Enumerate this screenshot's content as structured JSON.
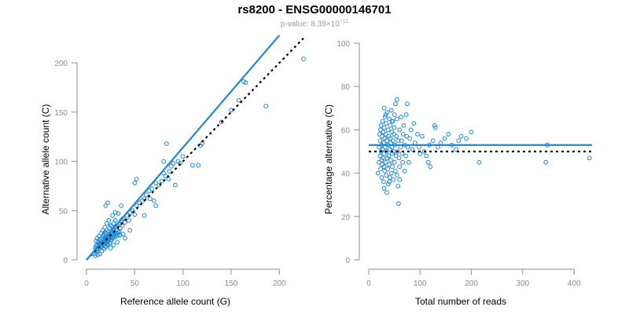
{
  "page": {
    "title": "rs8200 - ENSG00000146701",
    "pvalue_prefix": "p-value: 8.39×10",
    "pvalue_exponent": "−11"
  },
  "colors": {
    "points": "#1f87d6",
    "fit_line": "#1f87d6",
    "reference_line": "#000000",
    "axis": "#8c8c8c"
  },
  "chart_data": [
    {
      "type": "scatter",
      "xlabel": "Reference allele count (G)",
      "ylabel": "Alternative allele count (C)",
      "xlim": [
        0,
        225
      ],
      "ylim": [
        0,
        220
      ],
      "xticks": [
        0,
        50,
        100,
        150,
        200
      ],
      "yticks": [
        0,
        50,
        100,
        150,
        200
      ],
      "fit_line": {
        "x": [
          0,
          200
        ],
        "y": [
          0,
          228
        ]
      },
      "reference_line": {
        "x": [
          0,
          225
        ],
        "y": [
          0,
          225
        ]
      },
      "points": [
        [
          8,
          6
        ],
        [
          9,
          8
        ],
        [
          10,
          10
        ],
        [
          11,
          9
        ],
        [
          12,
          11
        ],
        [
          9,
          12
        ],
        [
          10,
          14
        ],
        [
          11,
          15
        ],
        [
          12,
          13
        ],
        [
          13,
          15
        ],
        [
          14,
          17
        ],
        [
          13,
          12
        ],
        [
          12,
          18
        ],
        [
          15,
          16
        ],
        [
          16,
          14
        ],
        [
          15,
          19
        ],
        [
          14,
          21
        ],
        [
          17,
          18
        ],
        [
          18,
          16
        ],
        [
          16,
          22
        ],
        [
          17,
          24
        ],
        [
          18,
          21
        ],
        [
          19,
          19
        ],
        [
          20,
          23
        ],
        [
          18,
          26
        ],
        [
          19,
          28
        ],
        [
          21,
          20
        ],
        [
          22,
          24
        ],
        [
          20,
          27
        ],
        [
          21,
          30
        ],
        [
          23,
          22
        ],
        [
          22,
          18
        ],
        [
          24,
          26
        ],
        [
          23,
          29
        ],
        [
          25,
          24
        ],
        [
          26,
          28
        ],
        [
          24,
          32
        ],
        [
          25,
          35
        ],
        [
          27,
          26
        ],
        [
          28,
          31
        ],
        [
          26,
          34
        ],
        [
          29,
          28
        ],
        [
          30,
          33
        ],
        [
          28,
          37
        ],
        [
          31,
          30
        ],
        [
          32,
          35
        ],
        [
          30,
          40
        ],
        [
          33,
          28
        ],
        [
          34,
          36
        ],
        [
          35,
          32
        ],
        [
          36,
          40
        ],
        [
          37,
          35
        ],
        [
          38,
          42
        ],
        [
          35,
          25
        ],
        [
          40,
          38
        ],
        [
          42,
          45
        ],
        [
          44,
          40
        ],
        [
          45,
          48
        ],
        [
          48,
          50
        ],
        [
          50,
          46
        ],
        [
          52,
          55
        ],
        [
          55,
          58
        ],
        [
          58,
          60
        ],
        [
          60,
          62
        ],
        [
          62,
          66
        ],
        [
          65,
          70
        ],
        [
          68,
          72
        ],
        [
          70,
          60
        ],
        [
          72,
          78
        ],
        [
          75,
          76
        ],
        [
          78,
          80
        ],
        [
          80,
          88
        ],
        [
          82,
          85
        ],
        [
          85,
          82
        ],
        [
          88,
          95
        ],
        [
          90,
          98
        ],
        [
          95,
          100
        ],
        [
          100,
          105
        ],
        [
          110,
          96
        ],
        [
          116,
          96
        ],
        [
          118,
          116
        ],
        [
          120,
          118
        ],
        [
          140,
          140
        ],
        [
          150,
          152
        ],
        [
          158,
          162
        ],
        [
          163,
          181
        ],
        [
          165,
          180
        ],
        [
          186,
          156
        ],
        [
          225,
          204
        ],
        [
          20,
          55
        ],
        [
          22,
          58
        ],
        [
          30,
          48
        ],
        [
          38,
          26
        ],
        [
          25,
          12
        ],
        [
          28,
          15
        ],
        [
          32,
          18
        ],
        [
          40,
          22
        ],
        [
          45,
          30
        ],
        [
          50,
          78
        ],
        [
          52,
          82
        ],
        [
          60,
          45
        ],
        [
          66,
          62
        ],
        [
          72,
          55
        ],
        [
          80,
          100
        ],
        [
          83,
          118
        ],
        [
          86,
          90
        ],
        [
          92,
          76
        ],
        [
          97,
          98
        ],
        [
          10,
          19
        ],
        [
          11,
          22
        ],
        [
          13,
          24
        ],
        [
          15,
          27
        ],
        [
          17,
          30
        ],
        [
          19,
          33
        ],
        [
          21,
          37
        ],
        [
          23,
          40
        ],
        [
          16,
          9
        ],
        [
          18,
          11
        ],
        [
          20,
          13
        ],
        [
          22,
          15
        ],
        [
          24,
          17
        ],
        [
          26,
          20
        ],
        [
          14,
          6
        ],
        [
          12,
          5
        ],
        [
          9,
          4
        ],
        [
          27,
          45
        ],
        [
          33,
          47
        ],
        [
          36,
          55
        ],
        [
          15,
          13
        ],
        [
          16,
          17
        ],
        [
          17,
          15
        ],
        [
          18,
          19
        ],
        [
          19,
          14
        ],
        [
          20,
          17
        ],
        [
          21,
          16
        ],
        [
          22,
          21
        ],
        [
          23,
          19
        ],
        [
          24,
          22
        ],
        [
          25,
          20
        ],
        [
          26,
          24
        ],
        [
          27,
          22
        ],
        [
          28,
          25
        ],
        [
          29,
          23
        ],
        [
          30,
          26
        ],
        [
          31,
          24
        ],
        [
          32,
          27
        ],
        [
          33,
          25
        ],
        [
          34,
          29
        ]
      ]
    },
    {
      "type": "scatter",
      "xlabel": "Total number of reads",
      "ylabel": "Percentage alternative (C)",
      "xlim": [
        0,
        435
      ],
      "ylim": [
        0,
        100
      ],
      "xticks": [
        0,
        100,
        200,
        300,
        400
      ],
      "yticks": [
        0,
        20,
        40,
        60,
        80,
        100
      ],
      "fit_line": {
        "x": [
          0,
          435
        ],
        "y": [
          53,
          53
        ]
      },
      "reference_line": {
        "x": [
          0,
          435
        ],
        "y": [
          50,
          50
        ]
      },
      "points": [
        [
          18,
          40
        ],
        [
          20,
          45
        ],
        [
          20,
          52
        ],
        [
          21,
          58
        ],
        [
          22,
          48
        ],
        [
          22,
          55
        ],
        [
          23,
          42
        ],
        [
          23,
          60
        ],
        [
          24,
          50
        ],
        [
          24,
          62
        ],
        [
          25,
          38
        ],
        [
          25,
          46
        ],
        [
          25,
          53
        ],
        [
          26,
          57
        ],
        [
          26,
          44
        ],
        [
          27,
          64
        ],
        [
          27,
          51
        ],
        [
          28,
          47
        ],
        [
          28,
          59
        ],
        [
          29,
          36
        ],
        [
          29,
          54
        ],
        [
          30,
          43
        ],
        [
          30,
          61
        ],
        [
          30,
          49
        ],
        [
          31,
          56
        ],
        [
          31,
          41
        ],
        [
          32,
          66
        ],
        [
          32,
          52
        ],
        [
          33,
          45
        ],
        [
          33,
          58
        ],
        [
          34,
          39
        ],
        [
          34,
          63
        ],
        [
          35,
          50
        ],
        [
          35,
          55
        ],
        [
          36,
          47
        ],
        [
          36,
          68
        ],
        [
          37,
          42
        ],
        [
          37,
          53
        ],
        [
          38,
          60
        ],
        [
          38,
          35
        ],
        [
          39,
          48
        ],
        [
          39,
          57
        ],
        [
          40,
          44
        ],
        [
          40,
          65
        ],
        [
          41,
          51
        ],
        [
          41,
          38
        ],
        [
          42,
          56
        ],
        [
          42,
          62
        ],
        [
          43,
          46
        ],
        [
          43,
          54
        ],
        [
          44,
          69
        ],
        [
          44,
          40
        ],
        [
          45,
          52
        ],
        [
          45,
          59
        ],
        [
          46,
          43
        ],
        [
          46,
          49
        ],
        [
          47,
          64
        ],
        [
          47,
          55
        ],
        [
          48,
          37
        ],
        [
          48,
          50
        ],
        [
          49,
          58
        ],
        [
          50,
          45
        ],
        [
          50,
          61
        ],
        [
          51,
          53
        ],
        [
          52,
          72
        ],
        [
          52,
          41
        ],
        [
          53,
          48
        ],
        [
          54,
          57
        ],
        [
          55,
          74
        ],
        [
          55,
          65
        ],
        [
          56,
          50
        ],
        [
          57,
          34
        ],
        [
          57,
          55
        ],
        [
          58,
          26
        ],
        [
          59,
          47
        ],
        [
          60,
          60
        ],
        [
          60,
          43
        ],
        [
          62,
          52
        ],
        [
          63,
          66
        ],
        [
          64,
          55
        ],
        [
          65,
          49
        ],
        [
          66,
          45
        ],
        [
          67,
          58
        ],
        [
          68,
          62
        ],
        [
          70,
          53
        ],
        [
          70,
          41
        ],
        [
          72,
          48
        ],
        [
          73,
          67
        ],
        [
          74,
          57
        ],
        [
          75,
          72
        ],
        [
          76,
          52
        ],
        [
          78,
          45
        ],
        [
          80,
          56
        ],
        [
          82,
          60
        ],
        [
          85,
          51
        ],
        [
          88,
          63
        ],
        [
          90,
          54
        ],
        [
          95,
          58
        ],
        [
          98,
          52
        ],
        [
          100,
          49
        ],
        [
          104,
          57
        ],
        [
          108,
          50
        ],
        [
          112,
          48
        ],
        [
          116,
          45
        ],
        [
          118,
          53
        ],
        [
          120,
          43
        ],
        [
          125,
          55
        ],
        [
          128,
          62
        ],
        [
          130,
          61
        ],
        [
          135,
          52
        ],
        [
          140,
          54
        ],
        [
          148,
          56
        ],
        [
          155,
          58
        ],
        [
          162,
          53
        ],
        [
          170,
          51
        ],
        [
          175,
          55
        ],
        [
          180,
          57
        ],
        [
          190,
          56
        ],
        [
          200,
          59
        ],
        [
          215,
          45
        ],
        [
          345,
          45
        ],
        [
          348,
          53
        ],
        [
          430,
          47
        ],
        [
          30,
          33
        ],
        [
          35,
          31
        ],
        [
          40,
          36
        ],
        [
          45,
          64
        ],
        [
          50,
          67
        ],
        [
          55,
          39
        ],
        [
          60,
          37
        ],
        [
          30,
          70
        ],
        [
          33,
          67
        ]
      ]
    }
  ]
}
